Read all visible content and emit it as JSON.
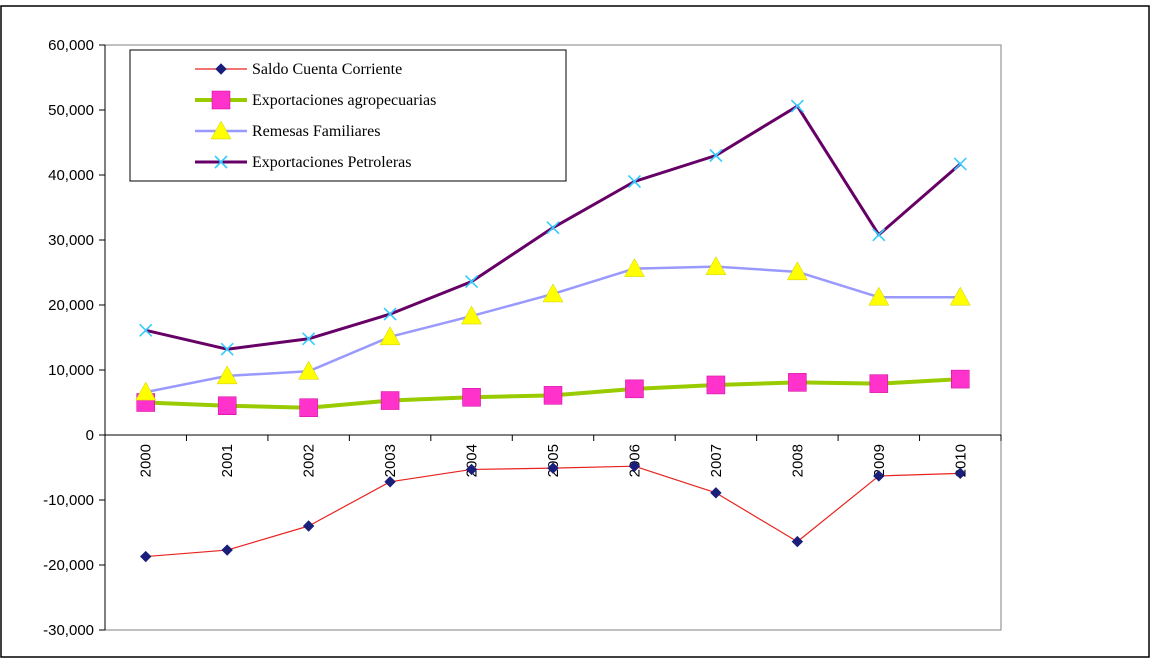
{
  "chart_data": {
    "type": "line",
    "categories": [
      "2000",
      "2001",
      "2002",
      "2003",
      "2004",
      "2005",
      "2006",
      "2007",
      "2008",
      "2009",
      "2010"
    ],
    "ylim": [
      -30000,
      60000
    ],
    "yticks": [
      "60,000",
      "50,000",
      "40,000",
      "30,000",
      "20,000",
      "10,000",
      "0",
      "-10,000",
      "-20,000",
      "-30,000"
    ],
    "ytick_values": [
      60000,
      50000,
      40000,
      30000,
      20000,
      10000,
      0,
      -10000,
      -20000,
      -30000
    ],
    "grid": false,
    "legend_position": "top-left",
    "series": [
      {
        "name": "Saldo Cuenta Corriente",
        "line_color": "#e8231f",
        "marker": "diamond",
        "marker_color": "#1a1f7a",
        "values": [
          -18700,
          -17700,
          -14000,
          -7200,
          -5300,
          -5100,
          -4800,
          -8900,
          -16400,
          -6300,
          -5900
        ]
      },
      {
        "name": "Exportaciones agropecuarias",
        "line_color": "#99cc00",
        "marker": "square",
        "marker_color": "#ff33cc",
        "values": [
          5000,
          4500,
          4200,
          5300,
          5800,
          6100,
          7100,
          7700,
          8100,
          7900,
          8600
        ]
      },
      {
        "name": "Remesas Familiares",
        "line_color": "#9999ff",
        "marker": "triangle",
        "marker_color": "#ffff00",
        "values": [
          6600,
          9100,
          9800,
          15100,
          18300,
          21700,
          25600,
          25900,
          25100,
          21200,
          21200
        ]
      },
      {
        "name": "Exportaciones Petroleras",
        "line_color": "#660066",
        "marker": "x",
        "marker_color": "#33ccff",
        "values": [
          16100,
          13200,
          14800,
          18600,
          23600,
          31900,
          39000,
          43000,
          50600,
          30800,
          41700
        ]
      }
    ]
  }
}
